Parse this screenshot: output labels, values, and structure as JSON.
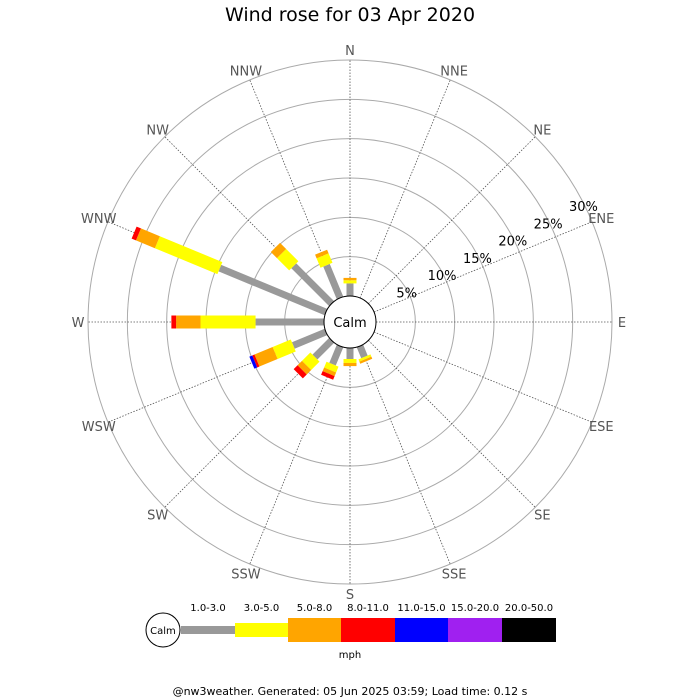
{
  "title": "Wind rose for 03 Apr 2020",
  "footer": "@nw3weather. Generated: 05 Jun 2025 03:59; Load time: 0.12 s",
  "chart_data": {
    "type": "windrose",
    "title": "Wind rose for 03 Apr 2020",
    "unit": "mph",
    "calm_label": "Calm",
    "directions": [
      "N",
      "NNE",
      "NE",
      "ENE",
      "E",
      "ESE",
      "SE",
      "SSE",
      "S",
      "SSW",
      "SW",
      "WSW",
      "W",
      "WNW",
      "NW",
      "NNW"
    ],
    "ring_labels": [
      "5%",
      "10%",
      "15%",
      "20%",
      "25%",
      "30%"
    ],
    "ring_values": [
      5,
      10,
      15,
      20,
      25,
      30
    ],
    "rmax": 30,
    "bins": [
      {
        "label": "1.0-3.0",
        "color": "#999999"
      },
      {
        "label": "3.0-5.0",
        "color": "#ffff00"
      },
      {
        "label": "5.0-8.0",
        "color": "#ffa500"
      },
      {
        "label": "8.0-11.0",
        "color": "#ff0000"
      },
      {
        "label": "11.0-15.0",
        "color": "#0000ff"
      },
      {
        "label": "15.0-20.0",
        "color": "#a020f0"
      },
      {
        "label": "20.0-50.0",
        "color": "#000000"
      }
    ],
    "series": [
      {
        "direction": "N",
        "values": [
          1.6,
          0.4,
          0.3,
          0,
          0,
          0,
          0
        ]
      },
      {
        "direction": "NNE",
        "values": [
          0,
          0,
          0,
          0,
          0,
          0,
          0
        ]
      },
      {
        "direction": "NE",
        "values": [
          0,
          0,
          0,
          0,
          0,
          0,
          0
        ]
      },
      {
        "direction": "ENE",
        "values": [
          0,
          0,
          0,
          0,
          0,
          0,
          0
        ]
      },
      {
        "direction": "E",
        "values": [
          0,
          0,
          0,
          0,
          0,
          0,
          0
        ]
      },
      {
        "direction": "ESE",
        "values": [
          0,
          0,
          0,
          0,
          0,
          0,
          0
        ]
      },
      {
        "direction": "SE",
        "values": [
          0,
          0,
          0,
          0,
          0,
          0,
          0
        ]
      },
      {
        "direction": "SSE",
        "values": [
          1.5,
          0.3,
          0.3,
          0,
          0,
          0,
          0
        ]
      },
      {
        "direction": "S",
        "values": [
          1.4,
          0.5,
          0.4,
          0,
          0,
          0,
          0
        ]
      },
      {
        "direction": "SSW",
        "values": [
          2.5,
          0.8,
          0.5,
          0.5,
          0,
          0,
          0
        ]
      },
      {
        "direction": "SW",
        "values": [
          3.0,
          1.5,
          0.8,
          0.7,
          0,
          0,
          0
        ]
      },
      {
        "direction": "WSW",
        "values": [
          4.5,
          2.5,
          2.5,
          0.3,
          0.4,
          0,
          0
        ]
      },
      {
        "direction": "W",
        "values": [
          8.7,
          7.0,
          3.1,
          0.6,
          0,
          0,
          0
        ]
      },
      {
        "direction": "WNW",
        "values": [
          14.6,
          8.6,
          2.6,
          0.6,
          0,
          0,
          0
        ]
      },
      {
        "direction": "NW",
        "values": [
          6.8,
          2.2,
          1.1,
          0,
          0,
          0,
          0
        ]
      },
      {
        "direction": "NNW",
        "values": [
          4.5,
          1.3,
          0.5,
          0,
          0,
          0,
          0
        ]
      }
    ]
  }
}
